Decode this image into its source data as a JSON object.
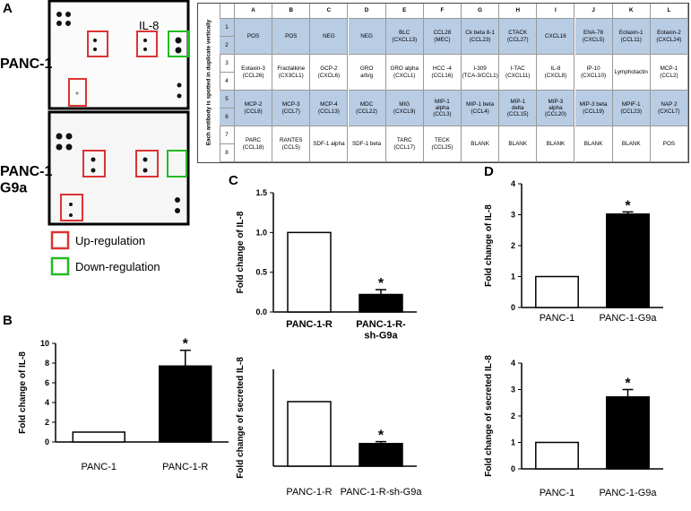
{
  "panel_labels": [
    "A",
    "B",
    "C",
    "D"
  ],
  "blot": {
    "labels": [
      "PANC-1",
      "PANC-1\nG9a"
    ],
    "marker": "IL-8",
    "legend": [
      "Up-regulation",
      "Down-regulation"
    ]
  },
  "table": {
    "side_label": "Each antibody is spotted in duplicate vertically",
    "columns": [
      "A",
      "B",
      "C",
      "D",
      "E",
      "F",
      "G",
      "H",
      "I",
      "J",
      "K",
      "L"
    ],
    "groups": [
      {
        "rows": [
          "1",
          "2"
        ],
        "cells": [
          "POS",
          "POS",
          "NEG",
          "NEG",
          "BLC\n(CXCL13)",
          "CCL28\n(MEC)",
          "Ck beta 8-1\n(CCL23)",
          "CTACK\n(CCL27)",
          "CXCL16",
          "ENA-78\n(CXCL5)",
          "Eotaxin-1\n(CCL11)",
          "Eotaxin-2\n(CXCL24)"
        ]
      },
      {
        "rows": [
          "3",
          "4"
        ],
        "cells": [
          "Eotaxin-3\n(CCL26)",
          "Fractalkine\n(CX3CL1)",
          "GCP-2\n(CXCL6)",
          "GRO\na/b/g",
          "GRO alpha\n(CXCL1)",
          "HCC -4\n(CCL16)",
          "I-309\n(TCA-3/CCL1)",
          "I-TAC\n(CXCL11)",
          "IL-8\n(CXCL8)",
          "IP-10\n(CXCL10)",
          "Lymphotactin",
          "MCP-1\n(CCL2)"
        ]
      },
      {
        "rows": [
          "5",
          "6"
        ],
        "cells": [
          "MCP-2\n(CCL8)",
          "MCP-3\n(CCL7)",
          "MCP-4\n(CCL13)",
          "MDC\n(CCL22)",
          "MIG\n(CXCL9)",
          "MIP-1\nalpha\n(CCL3)",
          "MIP-1 beta\n(CCL4)",
          "MIP-1\ndelta\n(CCL15)",
          "MIP-3\nalpha\n(CCL20)",
          "MIP-3 beta\n(CCL19)",
          "MPIF-1\n(CCL23)",
          "NAP 2\n(CXCL7)"
        ]
      },
      {
        "rows": [
          "7",
          "8"
        ],
        "cells": [
          "PARC\n(CCL18)",
          "RANTES\n(CCL5)",
          "SDF-1 alpha",
          "SDF-1 beta",
          "TARC\n(CCL17)",
          "TECK\n(CCL25)",
          "BLANK",
          "BLANK",
          "BLANK",
          "BLANK",
          "BLANK",
          "POS"
        ]
      }
    ]
  },
  "chart_data": [
    {
      "type": "bar",
      "ylabel": "Fold change of IL-8",
      "categories": [
        "PANC-1",
        "PANC-1-R"
      ],
      "values": [
        1,
        7.7
      ],
      "errors": [
        null,
        1.6
      ],
      "colors": [
        "#ffffff",
        "#000000"
      ],
      "ylim": [
        0,
        10
      ],
      "yticks": [
        0,
        2,
        4,
        6,
        8,
        10
      ],
      "annotation": "*"
    },
    {
      "type": "bar",
      "ylabel": "Fold change of IL-8",
      "categories": [
        "PANC-1-R",
        "PANC-1-R-\nsh-G9a"
      ],
      "values": [
        1,
        0.22
      ],
      "errors": [
        null,
        0.06
      ],
      "colors": [
        "#ffffff",
        "#000000"
      ],
      "ylim": [
        0,
        1.5
      ],
      "yticks": [
        {
          "value": 0,
          "label": "0.0"
        },
        {
          "value": 0.5,
          "label": "0.5"
        },
        {
          "value": 1,
          "label": "1.0"
        },
        {
          "value": 1.5,
          "label": "1.5"
        }
      ],
      "annotation": "*"
    },
    {
      "type": "bar",
      "ylabel": "Fold change of secreted IL-8",
      "categories": [
        "PANC-1-R",
        "PANC-1-R-sh-G9a"
      ],
      "values": [
        1,
        0.35
      ],
      "errors": [
        null,
        0.03
      ],
      "colors": [
        "#ffffff",
        "#000000"
      ],
      "ylim": [
        0,
        1.5
      ],
      "annotation": "*"
    },
    {
      "type": "bar",
      "ylabel": "Fold change of IL-8",
      "categories": [
        "PANC-1",
        "PANC-1-G9a"
      ],
      "values": [
        1,
        3.02
      ],
      "errors": [
        null,
        0.07
      ],
      "colors": [
        "#ffffff",
        "#000000"
      ],
      "ylim": [
        0,
        4
      ],
      "yticks": [
        0,
        1,
        2,
        3,
        4
      ],
      "annotation": "*"
    },
    {
      "type": "bar",
      "ylabel": "Fold change of secreted IL-8",
      "categories": [
        "PANC-1",
        "PANC-1-G9a"
      ],
      "values": [
        1,
        2.72
      ],
      "errors": [
        null,
        0.28
      ],
      "colors": [
        "#ffffff",
        "#000000"
      ],
      "ylim": [
        0,
        4
      ],
      "yticks": [
        0,
        1,
        2,
        3,
        4
      ],
      "annotation": "*"
    }
  ]
}
